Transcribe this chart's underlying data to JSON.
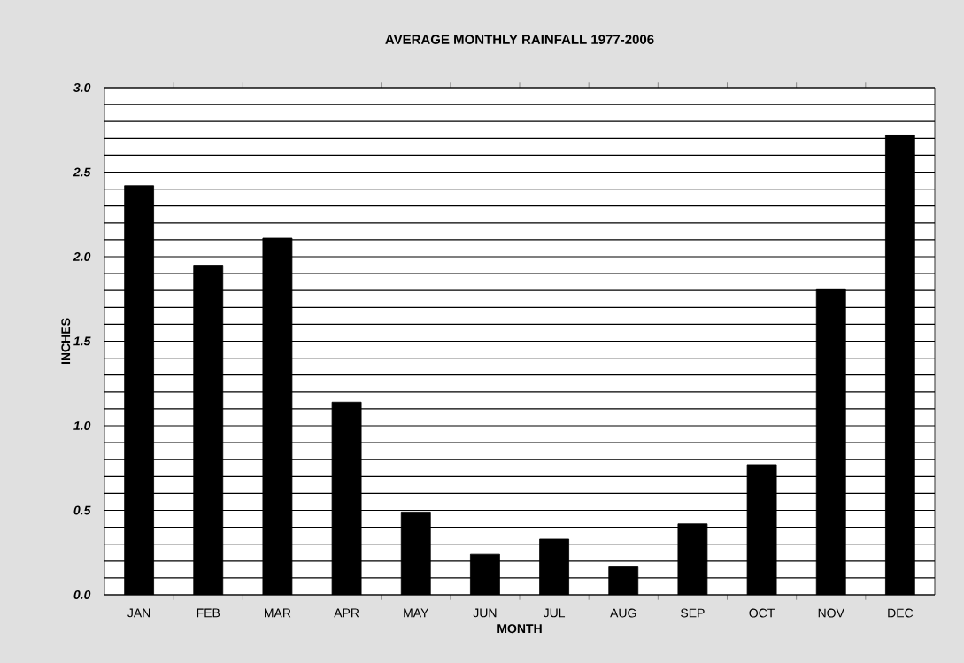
{
  "chart_data": {
    "type": "bar",
    "title": "AVERAGE MONTHLY RAINFALL  1977-2006",
    "xlabel": "MONTH",
    "ylabel": "INCHES",
    "categories": [
      "JAN",
      "FEB",
      "MAR",
      "APR",
      "MAY",
      "JUN",
      "JUL",
      "AUG",
      "SEP",
      "OCT",
      "NOV",
      "DEC"
    ],
    "values": [
      2.42,
      1.95,
      2.11,
      1.14,
      0.49,
      0.24,
      0.33,
      0.17,
      0.42,
      0.77,
      1.81,
      2.72
    ],
    "color": "#000000",
    "ylim": [
      0,
      3
    ],
    "yticks": [
      {
        "value": 0,
        "label": "0.0"
      },
      {
        "value": 0.1,
        "label": null
      },
      {
        "value": 0.2,
        "label": null
      },
      {
        "value": 0.3,
        "label": null
      },
      {
        "value": 0.4,
        "label": null
      },
      {
        "value": 0.5,
        "label": "0.5"
      },
      {
        "value": 0.6,
        "label": null
      },
      {
        "value": 0.7,
        "label": null
      },
      {
        "value": 0.8,
        "label": null
      },
      {
        "value": 0.9,
        "label": null
      },
      {
        "value": 1,
        "label": "1.0"
      },
      {
        "value": 1.1,
        "label": null
      },
      {
        "value": 1.2,
        "label": null
      },
      {
        "value": 1.3,
        "label": null
      },
      {
        "value": 1.4,
        "label": null
      },
      {
        "value": 1.5,
        "label": "1.5"
      },
      {
        "value": 1.6,
        "label": null
      },
      {
        "value": 1.7,
        "label": null
      },
      {
        "value": 1.8,
        "label": null
      },
      {
        "value": 1.9,
        "label": null
      },
      {
        "value": 2,
        "label": "2.0"
      },
      {
        "value": 2.1,
        "label": null
      },
      {
        "value": 2.2,
        "label": null
      },
      {
        "value": 2.3,
        "label": null
      },
      {
        "value": 2.4,
        "label": null
      },
      {
        "value": 2.5,
        "label": "2.5"
      },
      {
        "value": 2.6,
        "label": null
      },
      {
        "value": 2.7,
        "label": null
      },
      {
        "value": 2.8,
        "label": null
      },
      {
        "value": 2.9,
        "label": null
      },
      {
        "value": 3,
        "label": "3.0"
      }
    ],
    "grid": "y"
  }
}
